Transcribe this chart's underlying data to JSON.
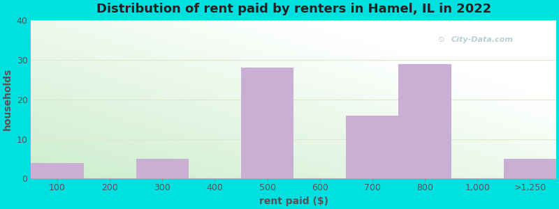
{
  "title": "Distribution of rent paid by renters in Hamel, IL in 2022",
  "xlabel": "rent paid ($)",
  "ylabel": "households",
  "categories": [
    "100",
    "200",
    "300",
    "400",
    "500",
    "600",
    "700",
    "800",
    "1,000",
    ">1,250"
  ],
  "values": [
    4,
    0,
    5,
    0,
    28,
    0,
    16,
    29,
    0,
    5
  ],
  "bar_color": "#c9afd4",
  "ylim": [
    0,
    40
  ],
  "yticks": [
    0,
    10,
    20,
    30,
    40
  ],
  "background_outer": "#00e0e0",
  "bg_color_topleft": "#d8eed8",
  "bg_color_topright": "#f0f8f0",
  "bg_color_bottomleft": "#d0e8d0",
  "bg_color_bottomright": "#ffffff",
  "grid_color": "#e0e8d8",
  "title_fontsize": 13,
  "axis_label_fontsize": 10,
  "tick_fontsize": 9,
  "title_color": "#222222",
  "label_color": "#555555",
  "tick_color": "#555555"
}
